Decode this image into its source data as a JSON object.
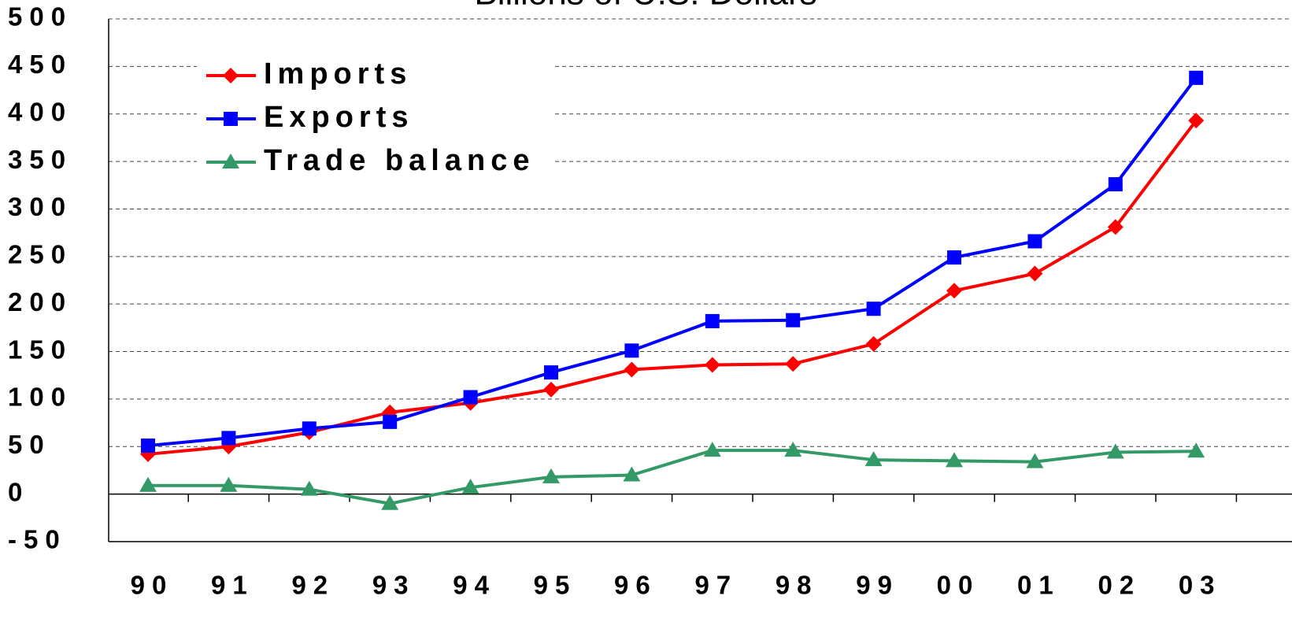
{
  "chart_data": {
    "type": "line",
    "title": "Billions of U.S. Dollars",
    "categories": [
      "90",
      "91",
      "92",
      "93",
      "94",
      "95",
      "96",
      "97",
      "98",
      "99",
      "00",
      "01",
      "02",
      "03"
    ],
    "series": [
      {
        "name": "Imports",
        "color": "#ff0000",
        "marker": "diamond",
        "values": [
          42,
          50,
          65,
          86,
          96,
          110,
          131,
          136,
          137,
          158,
          214,
          232,
          281,
          393
        ]
      },
      {
        "name": "Exports",
        "color": "#0000ff",
        "marker": "square",
        "values": [
          51,
          59,
          69,
          76,
          102,
          128,
          151,
          182,
          183,
          195,
          249,
          266,
          326,
          438
        ]
      },
      {
        "name": "Trade balance",
        "color": "#339966",
        "marker": "triangle",
        "values": [
          9,
          9,
          5,
          -10,
          7,
          18,
          20,
          46,
          46,
          36,
          35,
          34,
          44,
          45
        ]
      }
    ],
    "ylim": [
      -50,
      500
    ],
    "yticks": [
      -50,
      0,
      50,
      100,
      150,
      200,
      250,
      300,
      350,
      400,
      450,
      500
    ],
    "grid": true,
    "legend": "upper left"
  }
}
